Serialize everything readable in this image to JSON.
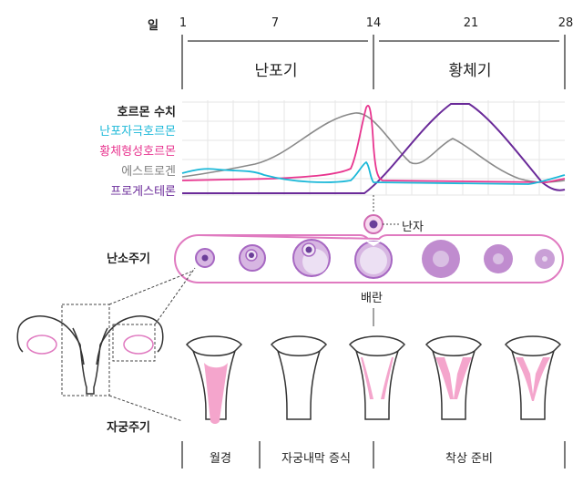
{
  "axis": {
    "unit": "일",
    "ticks": [
      "1",
      "7",
      "14",
      "21",
      "28"
    ]
  },
  "phases": [
    "난포기",
    "황체기"
  ],
  "hormones": {
    "title": "호르몬 수치",
    "series": [
      {
        "name": "난포자극호르몬",
        "color": "#1bb8d8"
      },
      {
        "name": "황체형성호르몬",
        "color": "#e8358f"
      },
      {
        "name": "에스트로겐",
        "color": "#808080"
      },
      {
        "name": "프로게스테론",
        "color": "#6a2a99"
      }
    ]
  },
  "ovarian": {
    "title": "난소주기",
    "egg": "난자",
    "ovulation": "배란"
  },
  "uterine": {
    "title": "자궁주기",
    "phases": [
      "월경",
      "자궁내막 증식",
      "착상 준비"
    ]
  }
}
